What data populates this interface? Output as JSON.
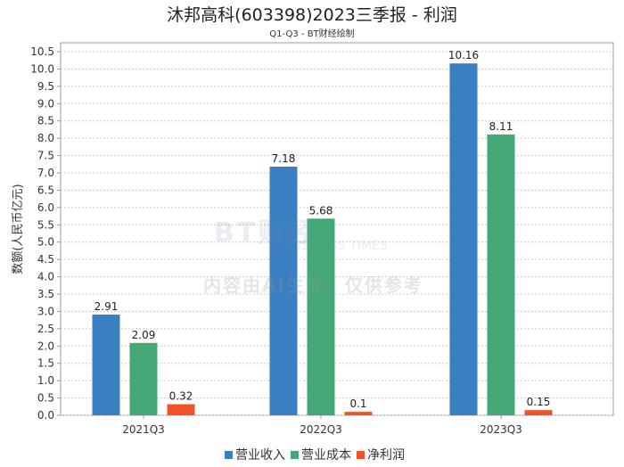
{
  "chart_data": {
    "type": "bar",
    "title": "沐邦高科(603398)2023三季报 - 利润",
    "subtitle": "Q1-Q3 - BT财经绘制",
    "xlabel": "",
    "ylabel": "数额(人民币亿元)",
    "ylim": [
      0,
      10.5
    ],
    "yticks": [
      "0.0",
      "0.5",
      "1.0",
      "1.5",
      "2.0",
      "2.5",
      "3.0",
      "3.5",
      "4.0",
      "4.5",
      "5.0",
      "5.5",
      "6.0",
      "6.5",
      "7.0",
      "7.5",
      "8.0",
      "8.5",
      "9.0",
      "9.5",
      "10.0",
      "10.5"
    ],
    "categories": [
      "2021Q3",
      "2022Q3",
      "2023Q3"
    ],
    "series": [
      {
        "name": "营业收入",
        "color": "#3a7fc1",
        "values": [
          2.91,
          7.18,
          10.16
        ]
      },
      {
        "name": "营业成本",
        "color": "#44a876",
        "values": [
          2.09,
          5.68,
          8.11
        ]
      },
      {
        "name": "净利润",
        "color": "#f0522a",
        "values": [
          0.32,
          0.1,
          0.15
        ]
      }
    ],
    "grid": true,
    "legend_position": "bottom"
  },
  "watermark": {
    "logo": "BT财经",
    "logo_sub": "BUSINESS TIMES",
    "notice": "内容由AI生成，仅供参考"
  }
}
